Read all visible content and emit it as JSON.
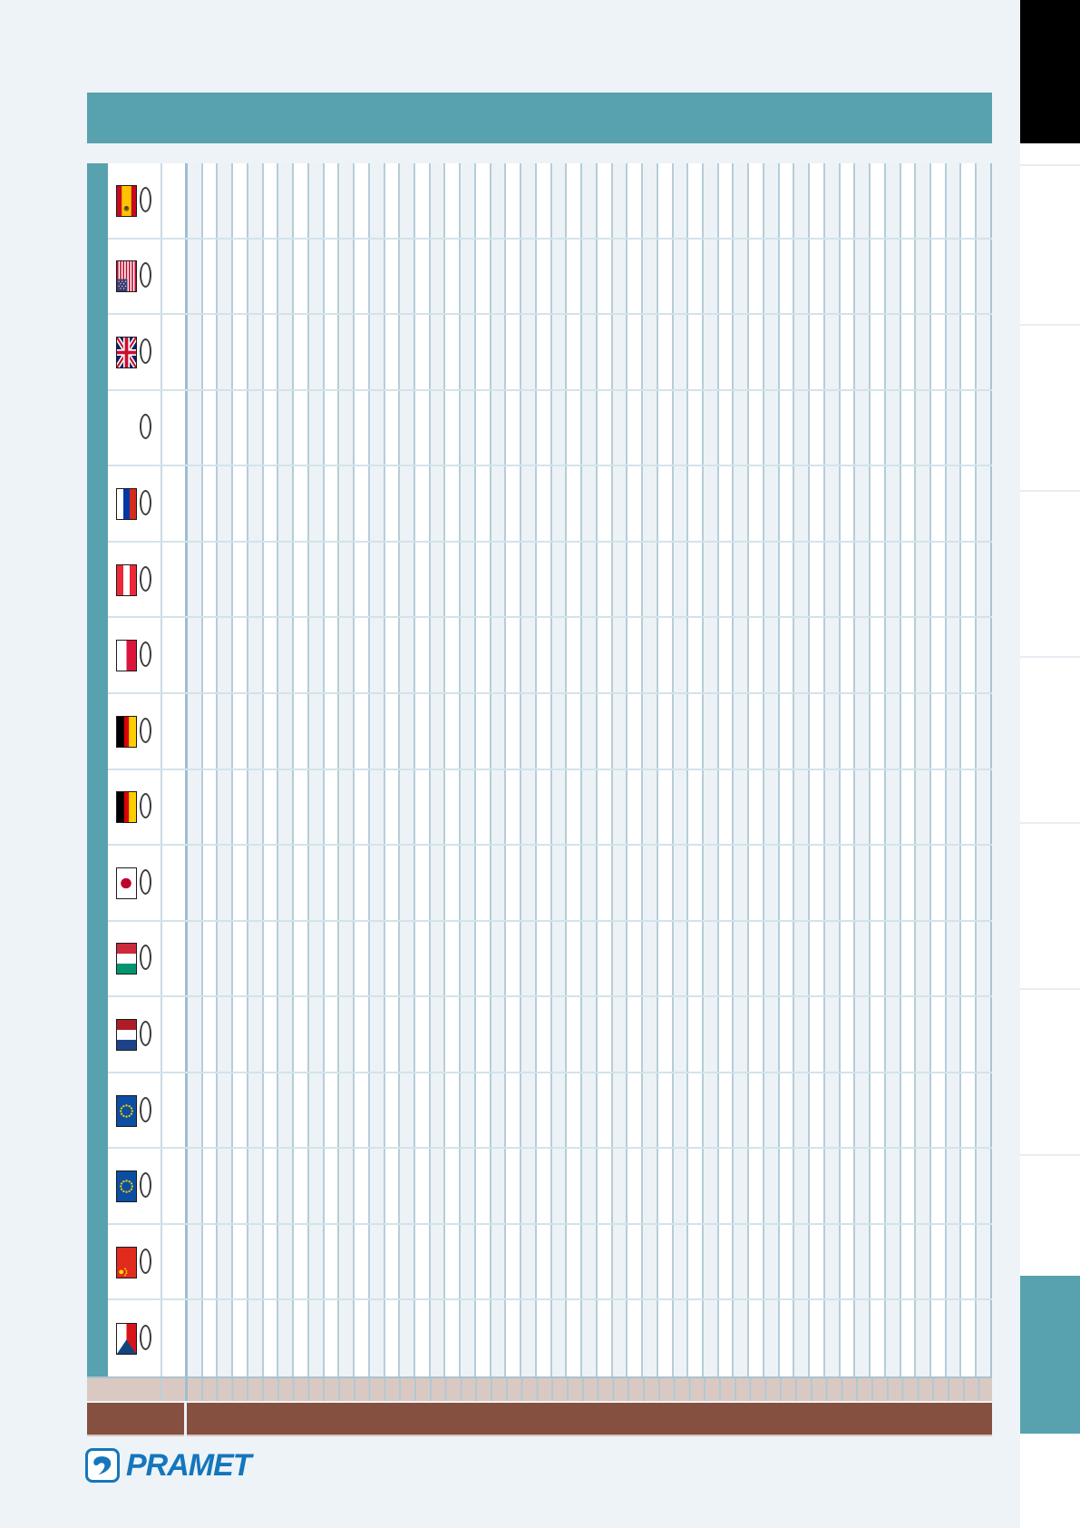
{
  "page": {
    "background_color": "#eef3f7",
    "accent_teal": "#57a2ae",
    "beige_row_color": "#dac9c2",
    "brown_row_color": "#85503f",
    "black_block_color": "#000000"
  },
  "header": {
    "bar_color": "#57a2ae",
    "bar_text": ""
  },
  "table": {
    "column_count": 53,
    "rows": [
      {
        "flag": "spain",
        "marker": "oval"
      },
      {
        "flag": "usa",
        "marker": "oval"
      },
      {
        "flag": "uk",
        "marker": "oval"
      },
      {
        "flag": "none",
        "marker": "oval"
      },
      {
        "flag": "russia",
        "marker": "oval"
      },
      {
        "flag": "austria",
        "marker": "oval"
      },
      {
        "flag": "poland",
        "marker": "oval"
      },
      {
        "flag": "germany",
        "marker": "oval"
      },
      {
        "flag": "germany",
        "marker": "oval"
      },
      {
        "flag": "japan",
        "marker": "oval"
      },
      {
        "flag": "hungary",
        "marker": "oval"
      },
      {
        "flag": "netherlands",
        "marker": "oval"
      },
      {
        "flag": "eu",
        "marker": "oval"
      },
      {
        "flag": "eu",
        "marker": "oval"
      },
      {
        "flag": "china",
        "marker": "oval"
      },
      {
        "flag": "czech",
        "marker": "oval"
      }
    ]
  },
  "sidebar": {
    "tab_count": 8,
    "active_tab_color": "#57a2ae"
  },
  "footer": {
    "brand": "PRAMET",
    "brand_color": "#1476bc"
  }
}
